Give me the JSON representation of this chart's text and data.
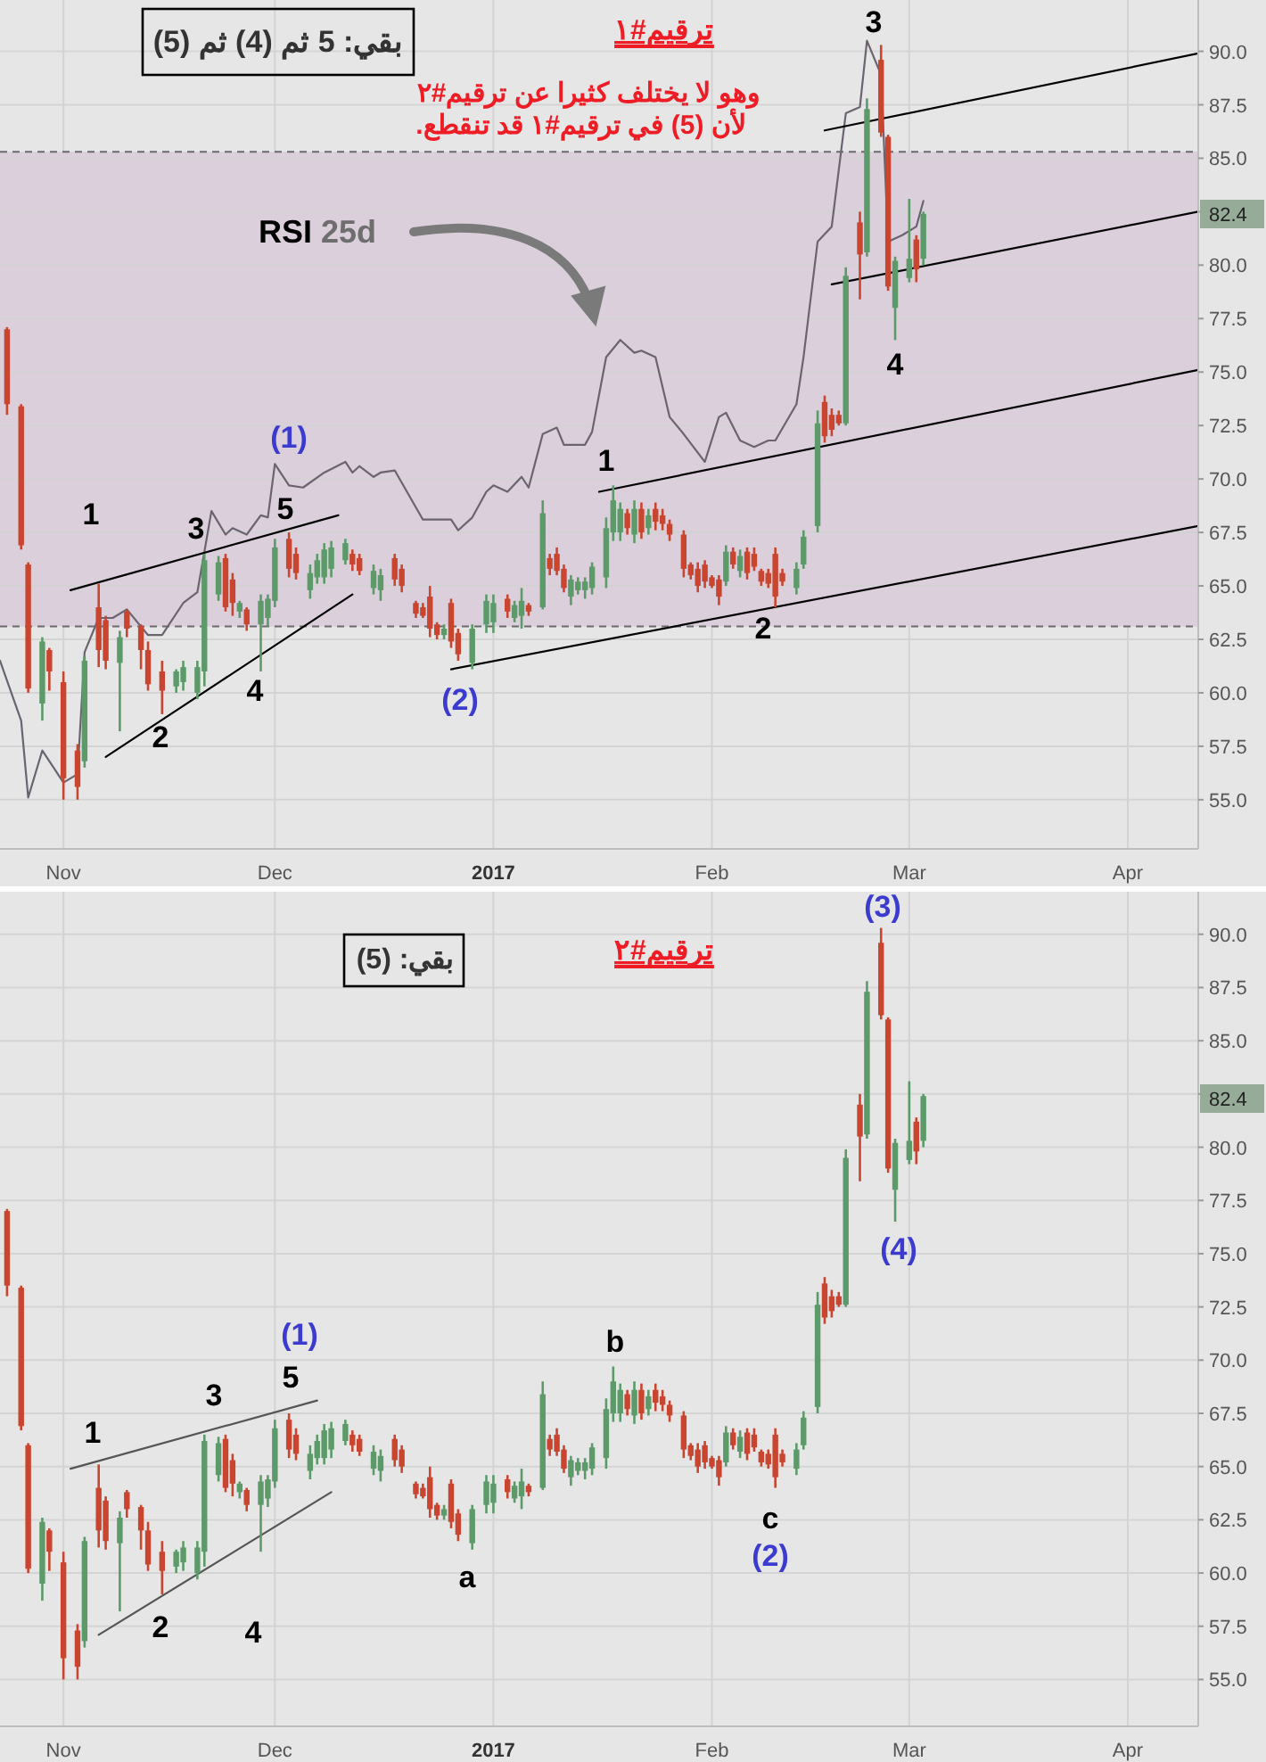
{
  "chart_data": [
    {
      "type": "candlestick",
      "title": "ترقيم#١",
      "x": [
        "2016-10-24",
        "2016-10-26",
        "2016-10-27",
        "2016-10-29",
        "2016-10-30",
        "2016-11-01",
        "2016-11-03",
        "2016-11-04",
        "2016-11-06",
        "2016-11-07",
        "2016-11-09",
        "2016-11-10",
        "2016-11-12",
        "2016-11-13",
        "2016-11-15",
        "2016-11-17",
        "2016-11-18",
        "2016-11-20",
        "2016-11-21",
        "2016-11-23",
        "2016-11-24",
        "2016-11-25",
        "2016-11-26",
        "2016-11-27",
        "2016-11-29",
        "2016-11-30",
        "2016-12-01",
        "2016-12-03",
        "2016-12-04",
        "2016-12-06",
        "2016-12-07",
        "2016-12-08",
        "2016-12-09",
        "2016-12-11",
        "2016-12-12",
        "2016-12-13",
        "2016-12-15",
        "2016-12-16",
        "2016-12-18",
        "2016-12-19",
        "2016-12-21",
        "2016-12-22",
        "2016-12-23",
        "2016-12-24",
        "2016-12-25",
        "2016-12-26",
        "2016-12-27",
        "2016-12-29",
        "2016-12-31",
        "2017-01-01",
        "2017-01-03",
        "2017-01-04",
        "2017-01-05",
        "2017-01-06",
        "2017-01-08",
        "2017-01-09",
        "2017-01-10",
        "2017-01-11",
        "2017-01-12",
        "2017-01-13",
        "2017-01-14",
        "2017-01-15",
        "2017-01-17",
        "2017-01-18",
        "2017-01-19",
        "2017-01-20",
        "2017-01-21",
        "2017-01-22",
        "2017-01-23",
        "2017-01-24",
        "2017-01-25",
        "2017-01-26",
        "2017-01-28",
        "2017-01-29",
        "2017-01-30",
        "2017-01-31",
        "2017-02-01",
        "2017-02-02",
        "2017-02-03",
        "2017-02-04",
        "2017-02-05",
        "2017-02-06",
        "2017-02-07",
        "2017-02-08",
        "2017-02-09",
        "2017-02-10",
        "2017-02-11",
        "2017-02-13",
        "2017-02-14",
        "2017-02-16",
        "2017-02-17",
        "2017-02-18",
        "2017-02-19",
        "2017-02-20",
        "2017-02-22",
        "2017-02-23",
        "2017-02-25",
        "2017-02-26",
        "2017-02-27",
        "2017-03-01",
        "2017-03-02",
        "2017-03-03"
      ],
      "ohlc": [
        [
          77.0,
          77.1,
          73.0,
          73.5
        ],
        [
          73.4,
          73.5,
          66.7,
          66.9
        ],
        [
          66.0,
          66.1,
          60.0,
          60.2
        ],
        [
          59.5,
          62.6,
          58.7,
          62.4
        ],
        [
          62.0,
          62.1,
          60.1,
          61.0
        ],
        [
          60.5,
          61.0,
          55.0,
          56.0
        ],
        [
          57.3,
          57.6,
          55.0,
          55.6
        ],
        [
          56.8,
          61.7,
          56.5,
          61.5
        ],
        [
          64.0,
          65.1,
          61.2,
          62.0
        ],
        [
          63.4,
          63.6,
          61.1,
          61.5
        ],
        [
          61.4,
          62.9,
          58.2,
          62.6
        ],
        [
          63.8,
          63.9,
          62.6,
          63.0
        ],
        [
          63.1,
          63.2,
          61.1,
          62.0
        ],
        [
          62.0,
          62.4,
          60.1,
          60.4
        ],
        [
          61.0,
          61.5,
          59.0,
          60.1
        ],
        [
          60.3,
          61.1,
          60.0,
          61.0
        ],
        [
          60.5,
          61.5,
          60.1,
          61.2
        ],
        [
          60.0,
          61.5,
          59.7,
          61.2
        ],
        [
          61.0,
          66.5,
          60.3,
          66.2
        ],
        [
          64.6,
          66.4,
          64.3,
          66.1
        ],
        [
          66.3,
          66.5,
          63.8,
          64.0
        ],
        [
          65.3,
          65.6,
          63.6,
          64.2
        ],
        [
          63.8,
          64.3,
          63.5,
          64.2
        ],
        [
          63.9,
          64.0,
          62.9,
          63.2
        ],
        [
          63.2,
          64.6,
          61.0,
          64.3
        ],
        [
          63.5,
          64.6,
          63.1,
          64.4
        ],
        [
          64.3,
          67.2,
          64.0,
          66.8
        ],
        [
          67.2,
          67.5,
          65.4,
          65.8
        ],
        [
          66.5,
          66.8,
          65.3,
          65.6
        ],
        [
          64.8,
          66.0,
          64.4,
          65.6
        ],
        [
          65.4,
          66.5,
          65.1,
          66.2
        ],
        [
          65.4,
          67.0,
          65.1,
          66.7
        ],
        [
          65.8,
          67.1,
          65.4,
          66.8
        ],
        [
          66.2,
          67.2,
          66.0,
          67.0
        ],
        [
          66.5,
          66.7,
          65.7,
          66.0
        ],
        [
          66.3,
          66.5,
          65.5,
          65.7
        ],
        [
          64.9,
          66.0,
          64.6,
          65.7
        ],
        [
          64.8,
          65.8,
          64.3,
          65.5
        ],
        [
          66.3,
          66.5,
          65.0,
          65.3
        ],
        [
          65.8,
          66.0,
          64.7,
          65.0
        ],
        [
          64.2,
          64.3,
          63.5,
          63.7
        ],
        [
          64.0,
          64.2,
          63.5,
          63.6
        ],
        [
          64.5,
          65.0,
          62.6,
          63.0
        ],
        [
          63.2,
          63.3,
          62.5,
          62.7
        ],
        [
          62.7,
          63.2,
          62.5,
          63.0
        ],
        [
          64.2,
          64.4,
          62.1,
          62.4
        ],
        [
          62.8,
          63.0,
          61.5,
          61.8
        ],
        [
          61.4,
          63.2,
          61.1,
          63.0
        ],
        [
          63.2,
          64.6,
          62.8,
          64.3
        ],
        [
          63.3,
          64.6,
          62.8,
          64.2
        ],
        [
          64.4,
          64.6,
          63.5,
          63.8
        ],
        [
          63.5,
          64.3,
          63.3,
          64.1
        ],
        [
          63.6,
          64.9,
          63.0,
          64.3
        ],
        [
          64.1,
          64.2,
          63.6,
          63.8
        ],
        [
          64.0,
          69.0,
          63.9,
          68.4
        ],
        [
          66.3,
          66.5,
          65.5,
          65.8
        ],
        [
          66.5,
          66.8,
          65.5,
          65.7
        ],
        [
          65.8,
          66.0,
          64.7,
          64.9
        ],
        [
          64.5,
          65.5,
          64.1,
          65.3
        ],
        [
          64.8,
          65.4,
          64.6,
          65.2
        ],
        [
          64.8,
          65.4,
          64.4,
          65.2
        ],
        [
          64.9,
          66.1,
          64.6,
          65.9
        ],
        [
          65.4,
          68.2,
          64.9,
          67.7
        ],
        [
          67.5,
          69.7,
          67.1,
          69.0
        ],
        [
          67.5,
          68.9,
          67.1,
          68.6
        ],
        [
          68.4,
          68.6,
          67.4,
          67.7
        ],
        [
          67.4,
          69.0,
          67.0,
          68.6
        ],
        [
          68.6,
          68.9,
          67.2,
          67.5
        ],
        [
          67.7,
          68.6,
          67.4,
          68.3
        ],
        [
          68.6,
          68.9,
          67.6,
          68.0
        ],
        [
          68.3,
          68.6,
          67.6,
          67.9
        ],
        [
          67.9,
          68.1,
          67.1,
          67.4
        ],
        [
          67.4,
          67.6,
          65.4,
          65.8
        ],
        [
          66.0,
          66.1,
          65.3,
          65.5
        ],
        [
          65.8,
          66.1,
          64.7,
          65.0
        ],
        [
          66.0,
          66.2,
          64.9,
          65.2
        ],
        [
          65.4,
          65.5,
          64.9,
          65.0
        ],
        [
          65.3,
          65.5,
          64.1,
          64.5
        ],
        [
          65.2,
          66.9,
          65.0,
          66.6
        ],
        [
          66.6,
          66.8,
          65.8,
          66.0
        ],
        [
          65.7,
          66.7,
          65.4,
          66.4
        ],
        [
          66.6,
          66.8,
          65.3,
          65.6
        ],
        [
          66.5,
          66.8,
          65.7,
          65.9
        ],
        [
          65.7,
          65.8,
          65.0,
          65.2
        ],
        [
          65.6,
          65.8,
          64.9,
          65.1
        ],
        [
          66.5,
          66.8,
          64.0,
          64.5
        ],
        [
          65.6,
          65.8,
          65.0,
          65.2
        ],
        [
          64.9,
          66.1,
          64.6,
          65.8
        ],
        [
          66.0,
          67.6,
          65.8,
          67.3
        ],
        [
          67.8,
          73.2,
          67.5,
          72.6
        ],
        [
          73.6,
          73.9,
          71.7,
          72.0
        ],
        [
          73.0,
          73.3,
          72.0,
          72.3
        ],
        [
          73.0,
          73.2,
          72.5,
          72.6
        ],
        [
          72.6,
          79.9,
          72.5,
          79.5
        ],
        [
          82.0,
          82.5,
          78.4,
          80.5
        ],
        [
          80.6,
          87.8,
          80.4,
          87.3
        ],
        [
          89.6,
          90.3,
          86.0,
          86.2
        ],
        [
          86.0,
          86.1,
          78.8,
          79.0
        ],
        [
          78.0,
          80.4,
          76.5,
          80.2
        ],
        [
          79.4,
          83.1,
          79.2,
          80.3
        ],
        [
          81.2,
          81.4,
          79.2,
          79.8
        ],
        [
          80.3,
          82.5,
          80.0,
          82.4
        ]
      ],
      "series": [
        {
          "type": "line",
          "color": "#6b6470",
          "x": [
            "2016-10-23",
            "2016-10-26",
            "2016-10-27",
            "2016-10-29",
            "2016-11-01",
            "2016-11-03",
            "2016-11-04",
            "2016-11-06",
            "2016-11-08",
            "2016-11-10",
            "2016-11-13",
            "2016-11-15",
            "2016-11-18",
            "2016-11-20",
            "2016-11-22",
            "2016-11-24",
            "2016-11-25",
            "2016-11-27",
            "2016-11-29",
            "2016-11-30",
            "2016-12-01",
            "2016-12-03",
            "2016-12-05",
            "2016-12-08",
            "2016-12-11",
            "2016-12-12",
            "2016-12-13",
            "2016-12-15",
            "2016-12-16",
            "2016-12-18",
            "2016-12-22",
            "2016-12-26",
            "2016-12-27",
            "2016-12-29",
            "2016-12-31",
            "2017-01-01",
            "2017-01-03",
            "2017-01-05",
            "2017-01-06",
            "2017-01-08",
            "2017-01-10",
            "2017-01-11",
            "2017-01-14",
            "2017-01-15",
            "2017-01-17",
            "2017-01-19",
            "2017-01-21",
            "2017-01-22",
            "2017-01-24",
            "2017-01-26",
            "2017-01-28",
            "2017-01-31",
            "2017-02-02",
            "2017-02-03",
            "2017-02-05",
            "2017-02-07",
            "2017-02-09",
            "2017-02-10",
            "2017-02-13",
            "2017-02-14",
            "2017-02-16",
            "2017-02-18",
            "2017-02-20",
            "2017-02-22",
            "2017-02-23",
            "2017-02-25",
            "2017-02-26",
            "2017-02-28",
            "2017-03-02",
            "2017-03-03"
          ],
          "values": [
            61.5,
            58.7,
            55.1,
            57.3,
            55.8,
            56.2,
            61.9,
            63.5,
            63.5,
            63.9,
            62.7,
            62.7,
            64.2,
            64.7,
            68.5,
            67.4,
            67.7,
            67.4,
            68.3,
            68.2,
            70.7,
            69.7,
            69.6,
            70.3,
            70.8,
            70.3,
            70.6,
            70.1,
            70.3,
            70.4,
            68.1,
            68.1,
            67.6,
            68.2,
            69.4,
            69.7,
            69.4,
            70.1,
            69.6,
            72.1,
            72.4,
            71.6,
            71.6,
            72.2,
            75.7,
            76.5,
            75.9,
            76.0,
            75.7,
            72.9,
            72.1,
            70.8,
            72.9,
            73.1,
            71.8,
            71.5,
            71.8,
            71.8,
            73.5,
            75.7,
            81.1,
            81.8,
            87.1,
            87.4,
            90.5,
            88.9,
            81.1,
            81.4,
            81.8,
            83.0
          ]
        },
        {
          "type": "line",
          "color": "#000000",
          "x": [
            "2016-11-02",
            "2016-12-10"
          ],
          "values": [
            64.8,
            68.3
          ]
        },
        {
          "type": "line",
          "color": "#000000",
          "x": [
            "2016-11-07",
            "2016-12-12"
          ],
          "values": [
            57.0,
            64.6
          ]
        },
        {
          "type": "line",
          "color": "#000000",
          "x": [
            "2016-12-26",
            "2017-04-11"
          ],
          "values": [
            61.1,
            67.8
          ]
        },
        {
          "type": "line",
          "color": "#000000",
          "x": [
            "2017-01-16",
            "2017-04-11"
          ],
          "values": [
            69.4,
            75.1
          ]
        },
        {
          "type": "line",
          "color": "#000000",
          "x": [
            "2017-02-18",
            "2017-04-11"
          ],
          "values": [
            79.1,
            82.5
          ]
        },
        {
          "type": "line",
          "color": "#000000",
          "x": [
            "2017-02-17",
            "2017-04-11"
          ],
          "values": [
            86.3,
            89.9
          ]
        }
      ],
      "bands": [
        {
          "axis": "y",
          "from": 63.1,
          "to": 85.3,
          "color": "#dacfdb"
        }
      ],
      "ref_lines": [
        {
          "axis": "y",
          "value": 63.1,
          "color": "#6a6a6a",
          "line_style": "dashed"
        },
        {
          "axis": "y",
          "value": 85.3,
          "color": "#6a6a6a",
          "line_style": "dashed"
        }
      ],
      "xlim": [
        "2016-10-23",
        "2017-04-11"
      ],
      "xticks": [
        {
          "value": "2016-11-01",
          "label": "Nov"
        },
        {
          "value": "2016-12-01",
          "label": "Dec"
        },
        {
          "value": "2017-01-01",
          "label": "2017"
        },
        {
          "value": "2017-02-01",
          "label": "Feb"
        },
        {
          "value": "2017-03-01",
          "label": "Mar"
        },
        {
          "value": "2017-04-01",
          "label": "Apr"
        }
      ],
      "ylim": [
        52.7,
        92.4
      ],
      "yticks": [
        {
          "value": 55,
          "label": "55.0"
        },
        {
          "value": 57.5,
          "label": "57.5"
        },
        {
          "value": 60,
          "label": "60.0"
        },
        {
          "value": 62.5,
          "label": "62.5"
        },
        {
          "value": 65,
          "label": "65.0"
        },
        {
          "value": 67.5,
          "label": "67.5"
        },
        {
          "value": 70,
          "label": "70.0"
        },
        {
          "value": 72.5,
          "label": "72.5"
        },
        {
          "value": 75,
          "label": "75.0"
        },
        {
          "value": 77.5,
          "label": "77.5"
        },
        {
          "value": 80,
          "label": "80.0"
        },
        {
          "value": 82.5,
          "label": null
        },
        {
          "value": 85,
          "label": "85.0"
        },
        {
          "value": 87.5,
          "label": "87.5"
        },
        {
          "value": 90,
          "label": "90.0"
        }
      ],
      "grid": true,
      "annotations": [
        "بقي: 5 ثم (4) ثم (5)",
        "وهو لا يختلف كثيرا عن ترقيم#٢",
        "لأن (5) في ترقيم#١ قد تنقطع.",
        "RSI 25d",
        "82.4",
        "1",
        "2",
        "3",
        "4",
        "5",
        "(1)",
        "(2)",
        "1",
        "2",
        "3",
        "4"
      ]
    },
    {
      "type": "candlestick",
      "title": "ترقيم#٢",
      "x": [
        "2016-10-24",
        "2016-10-26",
        "2016-10-27",
        "2016-10-29",
        "2016-10-30",
        "2016-11-01",
        "2016-11-03",
        "2016-11-04",
        "2016-11-06",
        "2016-11-07",
        "2016-11-09",
        "2016-11-10",
        "2016-11-12",
        "2016-11-13",
        "2016-11-15",
        "2016-11-17",
        "2016-11-18",
        "2016-11-20",
        "2016-11-21",
        "2016-11-23",
        "2016-11-24",
        "2016-11-25",
        "2016-11-26",
        "2016-11-27",
        "2016-11-29",
        "2016-11-30",
        "2016-12-01",
        "2016-12-03",
        "2016-12-04",
        "2016-12-06",
        "2016-12-07",
        "2016-12-08",
        "2016-12-09",
        "2016-12-11",
        "2016-12-12",
        "2016-12-13",
        "2016-12-15",
        "2016-12-16",
        "2016-12-18",
        "2016-12-19",
        "2016-12-21",
        "2016-12-22",
        "2016-12-23",
        "2016-12-24",
        "2016-12-25",
        "2016-12-26",
        "2016-12-27",
        "2016-12-29",
        "2016-12-31",
        "2017-01-01",
        "2017-01-03",
        "2017-01-04",
        "2017-01-05",
        "2017-01-06",
        "2017-01-08",
        "2017-01-09",
        "2017-01-10",
        "2017-01-11",
        "2017-01-12",
        "2017-01-13",
        "2017-01-14",
        "2017-01-15",
        "2017-01-17",
        "2017-01-18",
        "2017-01-19",
        "2017-01-20",
        "2017-01-21",
        "2017-01-22",
        "2017-01-23",
        "2017-01-24",
        "2017-01-25",
        "2017-01-26",
        "2017-01-28",
        "2017-01-29",
        "2017-01-30",
        "2017-01-31",
        "2017-02-01",
        "2017-02-02",
        "2017-02-03",
        "2017-02-04",
        "2017-02-05",
        "2017-02-06",
        "2017-02-07",
        "2017-02-08",
        "2017-02-09",
        "2017-02-10",
        "2017-02-11",
        "2017-02-13",
        "2017-02-14",
        "2017-02-16",
        "2017-02-17",
        "2017-02-18",
        "2017-02-19",
        "2017-02-20",
        "2017-02-22",
        "2017-02-23",
        "2017-02-25",
        "2017-02-26",
        "2017-02-27",
        "2017-03-01",
        "2017-03-02",
        "2017-03-03"
      ],
      "ohlc": [
        [
          77.0,
          77.1,
          73.0,
          73.5
        ],
        [
          73.4,
          73.5,
          66.7,
          66.9
        ],
        [
          66.0,
          66.1,
          60.0,
          60.2
        ],
        [
          59.5,
          62.6,
          58.7,
          62.4
        ],
        [
          62.0,
          62.1,
          60.1,
          61.0
        ],
        [
          60.5,
          61.0,
          55.0,
          56.0
        ],
        [
          57.3,
          57.6,
          55.0,
          55.6
        ],
        [
          56.8,
          61.7,
          56.5,
          61.5
        ],
        [
          64.0,
          65.1,
          61.2,
          62.0
        ],
        [
          63.4,
          63.6,
          61.1,
          61.5
        ],
        [
          61.4,
          62.9,
          58.2,
          62.6
        ],
        [
          63.8,
          63.9,
          62.6,
          63.0
        ],
        [
          63.1,
          63.2,
          61.1,
          62.0
        ],
        [
          62.0,
          62.4,
          60.1,
          60.4
        ],
        [
          61.0,
          61.5,
          59.0,
          60.1
        ],
        [
          60.3,
          61.1,
          60.0,
          61.0
        ],
        [
          60.5,
          61.5,
          60.1,
          61.2
        ],
        [
          60.0,
          61.5,
          59.7,
          61.2
        ],
        [
          61.0,
          66.5,
          60.3,
          66.2
        ],
        [
          64.6,
          66.4,
          64.3,
          66.1
        ],
        [
          66.3,
          66.5,
          63.8,
          64.0
        ],
        [
          65.3,
          65.6,
          63.6,
          64.2
        ],
        [
          63.8,
          64.3,
          63.5,
          64.2
        ],
        [
          63.9,
          64.0,
          62.9,
          63.2
        ],
        [
          63.2,
          64.6,
          61.0,
          64.3
        ],
        [
          63.5,
          64.6,
          63.1,
          64.4
        ],
        [
          64.3,
          67.2,
          64.0,
          66.8
        ],
        [
          67.2,
          67.5,
          65.4,
          65.8
        ],
        [
          66.5,
          66.8,
          65.3,
          65.6
        ],
        [
          64.8,
          66.0,
          64.4,
          65.6
        ],
        [
          65.4,
          66.5,
          65.1,
          66.2
        ],
        [
          65.4,
          67.0,
          65.1,
          66.7
        ],
        [
          65.8,
          67.1,
          65.4,
          66.8
        ],
        [
          66.2,
          67.2,
          66.0,
          67.0
        ],
        [
          66.5,
          66.7,
          65.7,
          66.0
        ],
        [
          66.3,
          66.5,
          65.5,
          65.7
        ],
        [
          64.9,
          66.0,
          64.6,
          65.7
        ],
        [
          64.8,
          65.8,
          64.3,
          65.5
        ],
        [
          66.3,
          66.5,
          65.0,
          65.3
        ],
        [
          65.8,
          66.0,
          64.7,
          65.0
        ],
        [
          64.2,
          64.3,
          63.5,
          63.7
        ],
        [
          64.0,
          64.2,
          63.5,
          63.6
        ],
        [
          64.5,
          65.0,
          62.6,
          63.0
        ],
        [
          63.2,
          63.3,
          62.5,
          62.7
        ],
        [
          62.7,
          63.2,
          62.5,
          63.0
        ],
        [
          64.2,
          64.4,
          62.1,
          62.4
        ],
        [
          62.8,
          63.0,
          61.5,
          61.8
        ],
        [
          61.4,
          63.2,
          61.1,
          63.0
        ],
        [
          63.2,
          64.6,
          62.8,
          64.3
        ],
        [
          63.3,
          64.6,
          62.8,
          64.2
        ],
        [
          64.4,
          64.6,
          63.5,
          63.8
        ],
        [
          63.5,
          64.3,
          63.3,
          64.1
        ],
        [
          63.6,
          64.9,
          63.0,
          64.3
        ],
        [
          64.1,
          64.2,
          63.6,
          63.8
        ],
        [
          64.0,
          69.0,
          63.9,
          68.4
        ],
        [
          66.3,
          66.5,
          65.5,
          65.8
        ],
        [
          66.5,
          66.8,
          65.5,
          65.7
        ],
        [
          65.8,
          66.0,
          64.7,
          64.9
        ],
        [
          64.5,
          65.5,
          64.1,
          65.3
        ],
        [
          64.8,
          65.4,
          64.6,
          65.2
        ],
        [
          64.8,
          65.4,
          64.4,
          65.2
        ],
        [
          64.9,
          66.1,
          64.6,
          65.9
        ],
        [
          65.4,
          68.2,
          64.9,
          67.7
        ],
        [
          67.5,
          69.7,
          67.1,
          69.0
        ],
        [
          67.5,
          68.9,
          67.1,
          68.6
        ],
        [
          68.4,
          68.6,
          67.4,
          67.7
        ],
        [
          67.4,
          69.0,
          67.0,
          68.6
        ],
        [
          68.6,
          68.9,
          67.2,
          67.5
        ],
        [
          67.7,
          68.6,
          67.4,
          68.3
        ],
        [
          68.6,
          68.9,
          67.6,
          68.0
        ],
        [
          68.3,
          68.6,
          67.6,
          67.9
        ],
        [
          67.9,
          68.1,
          67.1,
          67.4
        ],
        [
          67.4,
          67.6,
          65.4,
          65.8
        ],
        [
          66.0,
          66.1,
          65.3,
          65.5
        ],
        [
          65.8,
          66.1,
          64.7,
          65.0
        ],
        [
          66.0,
          66.2,
          64.9,
          65.2
        ],
        [
          65.4,
          65.5,
          64.9,
          65.0
        ],
        [
          65.3,
          65.5,
          64.1,
          64.5
        ],
        [
          65.2,
          66.9,
          65.0,
          66.6
        ],
        [
          66.6,
          66.8,
          65.8,
          66.0
        ],
        [
          65.7,
          66.7,
          65.4,
          66.4
        ],
        [
          66.6,
          66.8,
          65.3,
          65.6
        ],
        [
          66.5,
          66.8,
          65.7,
          65.9
        ],
        [
          65.7,
          65.8,
          65.0,
          65.2
        ],
        [
          65.6,
          65.8,
          64.9,
          65.1
        ],
        [
          66.5,
          66.8,
          64.0,
          64.5
        ],
        [
          65.6,
          65.8,
          65.0,
          65.2
        ],
        [
          64.9,
          66.1,
          64.6,
          65.8
        ],
        [
          66.0,
          67.6,
          65.8,
          67.3
        ],
        [
          67.8,
          73.2,
          67.5,
          72.6
        ],
        [
          73.6,
          73.9,
          71.7,
          72.0
        ],
        [
          73.0,
          73.3,
          72.0,
          72.3
        ],
        [
          73.0,
          73.2,
          72.5,
          72.6
        ],
        [
          72.6,
          79.9,
          72.5,
          79.5
        ],
        [
          82.0,
          82.5,
          78.4,
          80.5
        ],
        [
          80.6,
          87.8,
          80.4,
          87.3
        ],
        [
          89.6,
          90.3,
          86.0,
          86.2
        ],
        [
          86.0,
          86.1,
          78.8,
          79.0
        ],
        [
          78.0,
          80.4,
          76.5,
          80.2
        ],
        [
          79.4,
          83.1,
          79.2,
          80.3
        ],
        [
          81.2,
          81.4,
          79.2,
          79.8
        ],
        [
          80.3,
          82.5,
          80.0,
          82.4
        ]
      ],
      "series": [
        {
          "type": "line",
          "color": "#555555",
          "x": [
            "2016-11-02",
            "2016-12-07"
          ],
          "values": [
            64.9,
            68.1
          ]
        },
        {
          "type": "line",
          "color": "#555555",
          "x": [
            "2016-11-06",
            "2016-12-09"
          ],
          "values": [
            57.1,
            63.8
          ]
        }
      ],
      "xlim": [
        "2016-10-23",
        "2017-04-11"
      ],
      "xticks": [
        {
          "value": "2016-11-01",
          "label": "Nov"
        },
        {
          "value": "2016-12-01",
          "label": "Dec"
        },
        {
          "value": "2017-01-01",
          "label": "2017"
        },
        {
          "value": "2017-02-01",
          "label": "Feb"
        },
        {
          "value": "2017-03-01",
          "label": "Mar"
        },
        {
          "value": "2017-04-01",
          "label": "Apr"
        }
      ],
      "ylim": [
        52.8,
        92.0
      ],
      "yticks": [
        {
          "value": 55,
          "label": "55.0"
        },
        {
          "value": 57.5,
          "label": "57.5"
        },
        {
          "value": 60,
          "label": "60.0"
        },
        {
          "value": 62.5,
          "label": "62.5"
        },
        {
          "value": 65,
          "label": "65.0"
        },
        {
          "value": 67.5,
          "label": "67.5"
        },
        {
          "value": 70,
          "label": "70.0"
        },
        {
          "value": 72.5,
          "label": "72.5"
        },
        {
          "value": 75,
          "label": "75.0"
        },
        {
          "value": 77.5,
          "label": "77.5"
        },
        {
          "value": 80,
          "label": "80.0"
        },
        {
          "value": 82.5,
          "label": null
        },
        {
          "value": 85,
          "label": "85.0"
        },
        {
          "value": 87.5,
          "label": "87.5"
        },
        {
          "value": 90,
          "label": "90.0"
        }
      ],
      "grid": true,
      "annotations": [
        "بقي: (5)",
        "82.4",
        "1",
        "2",
        "3",
        "4",
        "5",
        "(1)",
        "a",
        "b",
        "c",
        "(2)",
        "(3)",
        "(4)"
      ]
    }
  ]
}
